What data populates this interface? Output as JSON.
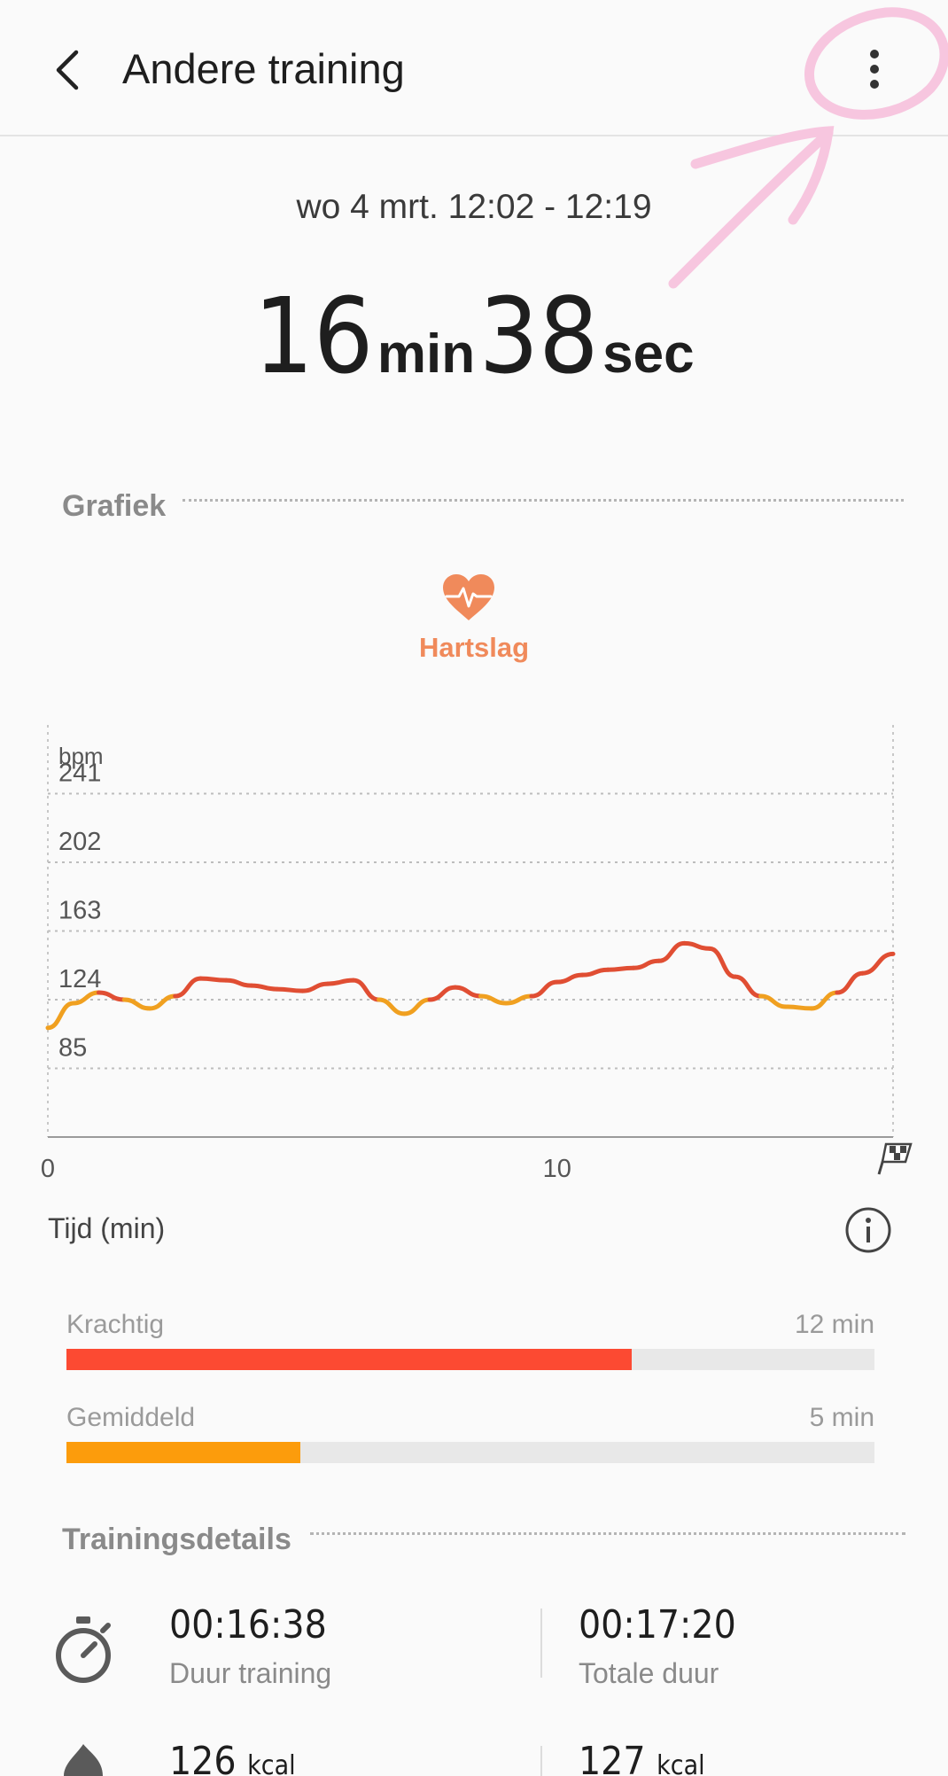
{
  "header": {
    "title": "Andere training",
    "back_icon": "chevron-left-icon",
    "more_icon": "more-vert-icon"
  },
  "summary": {
    "date_range": "wo 4 mrt. 12:02 - 12:19",
    "minutes": "16",
    "minutes_unit": "min",
    "seconds": "38",
    "seconds_unit": "sec"
  },
  "graph_section": {
    "title": "Grafiek",
    "metric_label": "Hartslag",
    "metric_icon": "heart-pulse-icon",
    "metric_color": "#f08a5b"
  },
  "chart_data": {
    "type": "line",
    "ylabel": "bpm",
    "xlabel": "Tijd (min)",
    "y_ticks": [
      241,
      202,
      163,
      124,
      85
    ],
    "x_ticks": [
      "0",
      "10"
    ],
    "x_end_icon": "finish-flag-icon",
    "xlim": [
      0,
      16.6
    ],
    "ylim": [
      46,
      280
    ],
    "grid": true,
    "series": [
      {
        "x": [
          0,
          0.5,
          1,
          1.5,
          2,
          2.5,
          3,
          3.5,
          4,
          4.5,
          5,
          5.5,
          6,
          6.5,
          7,
          7.5,
          8,
          8.5,
          9,
          9.5,
          10,
          10.5,
          11,
          11.5,
          12,
          12.5,
          13,
          13.5,
          14,
          14.5,
          15,
          15.5,
          16,
          16.6
        ],
        "values": [
          108,
          122,
          128,
          124,
          119,
          126,
          136,
          135,
          132,
          130,
          129,
          133,
          135,
          124,
          116,
          124,
          131,
          126,
          122,
          126,
          134,
          138,
          141,
          142,
          146,
          156,
          153,
          137,
          126,
          120,
          119,
          128,
          139,
          150
        ]
      }
    ],
    "colors": {
      "high": "#e04e33",
      "mid": "#f0a020"
    }
  },
  "chart_footer": {
    "info_icon": "info-icon"
  },
  "zones": [
    {
      "name": "Krachtig",
      "time": "12 min",
      "fraction": 0.7,
      "color": "#fc4a32"
    },
    {
      "name": "Gemiddeld",
      "time": "5 min",
      "fraction": 0.29,
      "color": "#fc9c0c"
    }
  ],
  "details_section": {
    "title": "Trainingsdetails",
    "rows": [
      {
        "icon": "stopwatch-icon",
        "left_value": "00:16:38",
        "left_label": "Duur training",
        "right_value": "00:17:20",
        "right_label": "Totale duur"
      },
      {
        "icon": "flame-icon",
        "left_value": "126",
        "left_unit": "kcal",
        "right_value": "127",
        "right_unit": "kcal"
      }
    ]
  }
}
